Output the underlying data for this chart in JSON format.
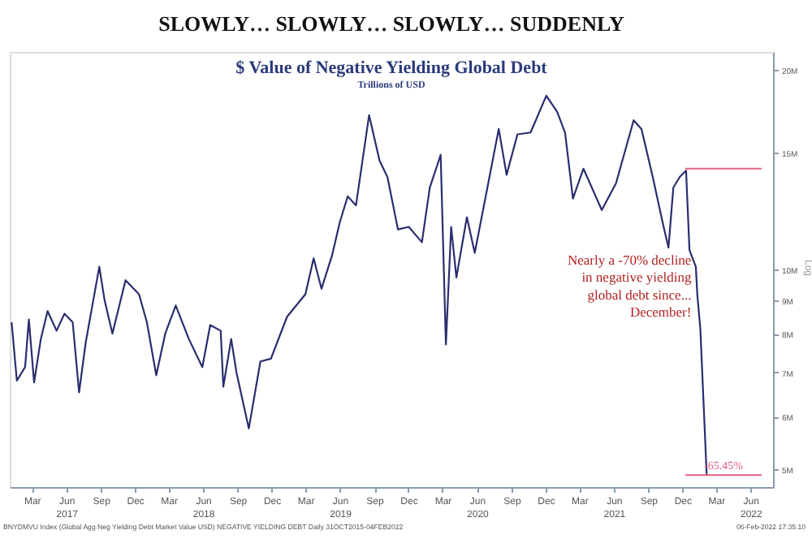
{
  "chart_data": {
    "type": "line",
    "title": "SLOWLY… SLOWLY… SLOWLY… SUDDENLY",
    "subtitle": "$ Value of Negative Yielding Global Debt",
    "x": [
      "2017-01-06",
      "2017-01-20",
      "2017-02-11",
      "2017-02-21",
      "2017-03-07",
      "2017-03-25",
      "2017-04-12",
      "2017-05-06",
      "2017-05-27",
      "2017-06-18",
      "2017-07-05",
      "2017-07-23",
      "2017-08-28",
      "2017-09-11",
      "2017-10-02",
      "2017-11-06",
      "2017-12-12",
      "2018-01-02",
      "2018-01-27",
      "2018-02-20",
      "2018-03-20",
      "2018-04-24",
      "2018-05-30",
      "2018-06-20",
      "2018-07-18",
      "2018-07-25",
      "2018-08-15",
      "2018-08-29",
      "2018-10-01",
      "2018-11-01",
      "2018-11-29",
      "2019-01-11",
      "2019-03-01",
      "2019-03-23",
      "2019-04-13",
      "2019-05-11",
      "2019-06-01",
      "2019-06-22",
      "2019-07-14",
      "2019-08-18",
      "2019-09-15",
      "2019-10-06",
      "2019-11-03",
      "2019-12-02",
      "2020-01-06",
      "2020-01-27",
      "2020-02-25",
      "2020-03-10",
      "2020-03-24",
      "2020-04-07",
      "2020-05-05",
      "2020-05-26",
      "2020-07-01",
      "2020-07-29",
      "2020-08-19",
      "2020-09-17",
      "2020-10-22",
      "2020-12-03",
      "2021-01-01",
      "2021-01-22",
      "2021-02-12",
      "2021-03-12",
      "2021-04-30",
      "2021-06-07",
      "2021-07-24",
      "2021-08-14",
      "2021-09-13",
      "2021-10-12",
      "2021-10-25",
      "2021-11-07",
      "2021-11-24",
      "2021-12-11",
      "2021-12-20",
      "2022-01-06",
      "2022-01-10",
      "2022-01-18",
      "2022-02-04"
    ],
    "series": [
      {
        "color": "#2b2d6e",
        "values": [
          8.33,
          6.8,
          7.13,
          8.41,
          6.76,
          7.86,
          8.66,
          8.09,
          8.58,
          8.33,
          6.53,
          7.78,
          10.1,
          9.0,
          8.01,
          9.64,
          9.18,
          8.33,
          6.93,
          8.01,
          8.83,
          7.86,
          7.13,
          8.25,
          8.09,
          6.66,
          7.86,
          7.0,
          5.76,
          7.27,
          7.34,
          8.49,
          9.18,
          10.4,
          9.36,
          10.5,
          11.8,
          12.9,
          12.5,
          17.1,
          14.6,
          13.8,
          11.5,
          11.6,
          11.0,
          13.3,
          14.9,
          7.71,
          11.6,
          9.73,
          12.0,
          10.6,
          13.5,
          16.3,
          13.9,
          16.0,
          16.1,
          18.3,
          17.3,
          16.1,
          12.8,
          14.2,
          12.3,
          13.5,
          16.8,
          16.3,
          13.8,
          11.6,
          10.8,
          13.3,
          13.8,
          14.1,
          10.7,
          10.1,
          9.16,
          8.15,
          4.9
        ]
      }
    ],
    "xlim": [
      "2017-01-01",
      "2022-07-31"
    ],
    "xticks": [
      {
        "value": "2017-03-01",
        "label": "Mar"
      },
      {
        "value": "2017-06-01",
        "label": "Jun\n2017"
      },
      {
        "value": "2017-09-01",
        "label": "Sep"
      },
      {
        "value": "2017-12-01",
        "label": "Dec"
      },
      {
        "value": "2018-03-01",
        "label": "Mar"
      },
      {
        "value": "2018-06-01",
        "label": "Jun\n2018"
      },
      {
        "value": "2018-09-01",
        "label": "Sep"
      },
      {
        "value": "2018-12-01",
        "label": "Dec"
      },
      {
        "value": "2019-03-01",
        "label": "Mar"
      },
      {
        "value": "2019-06-01",
        "label": "Jun\n2019"
      },
      {
        "value": "2019-09-01",
        "label": "Sep"
      },
      {
        "value": "2019-12-01",
        "label": "Dec"
      },
      {
        "value": "2020-03-01",
        "label": "Mar"
      },
      {
        "value": "2020-06-01",
        "label": "Jun\n2020"
      },
      {
        "value": "2020-09-01",
        "label": "Sep"
      },
      {
        "value": "2020-12-01",
        "label": "Dec"
      },
      {
        "value": "2021-03-01",
        "label": "Mar"
      },
      {
        "value": "2021-06-01",
        "label": "Jun\n2021"
      },
      {
        "value": "2021-09-01",
        "label": "Sep"
      },
      {
        "value": "2021-12-01",
        "label": "Dec"
      },
      {
        "value": "2022-03-01",
        "label": "Mar"
      },
      {
        "value": "2022-06-01",
        "label": "Jun\n2022"
      }
    ],
    "ylim": [
      4.7,
      21.3
    ],
    "log": true,
    "yticks": [
      {
        "value": 5,
        "label": "5M"
      },
      {
        "value": 6,
        "label": "6M"
      },
      {
        "value": 7,
        "label": "7M"
      },
      {
        "value": 8,
        "label": "8M"
      },
      {
        "value": 9,
        "label": "9M"
      },
      {
        "value": 10,
        "label": "10M"
      },
      {
        "value": 15,
        "label": "15M"
      },
      {
        "value": 20,
        "label": "20M"
      }
    ],
    "grid": false,
    "ref_lines": [
      {
        "axis": "y",
        "value": 14.2,
        "color": "#e06080"
      },
      {
        "axis": "y",
        "value": 4.9,
        "color": "#e06080"
      }
    ],
    "annotations": [
      "Trillions of USD",
      "Nearly a -70% decline\nin negative yielding\nglobal debt since...\nDecember!",
      "Log",
      "BNYDMVU Index (Global Agg Neg Yielding Debt Market Value USD) NEGATIVE YIELDING DEBT  Daily 31OCT2015-04FEB2022",
      "06-Feb-2022 17:35:10",
      "-65.45%"
    ]
  }
}
